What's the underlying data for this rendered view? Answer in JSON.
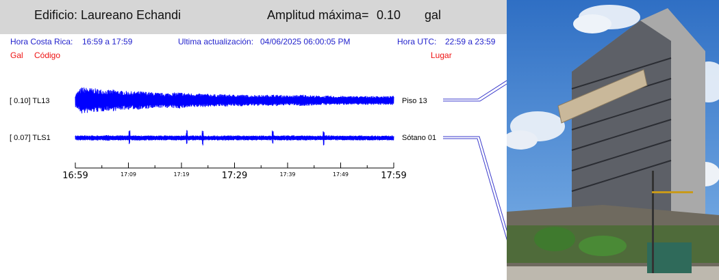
{
  "header": {
    "building_label": "Edificio: Laureano Echandi",
    "amp_label": "Amplitud máxima=",
    "amp_value": "0.10",
    "amp_unit": "gal"
  },
  "info": {
    "cr_time_label": "Hora Costa Rica:",
    "cr_time_value": "16:59 a 17:59",
    "update_label": "Ultima actualización:",
    "update_value": "04/06/2025 06:00:05 PM",
    "utc_label": "Hora UTC:",
    "utc_value": "22:59 a 23:59"
  },
  "legend": {
    "gal": "Gal",
    "code": "Código",
    "place": "Lugar"
  },
  "colors": {
    "trace": "#0000ff",
    "info_text": "#2222cc",
    "legend_text": "#ee1111",
    "header_bg": "#d6d6d6"
  },
  "chart_data": {
    "type": "line",
    "x_start": "16:59",
    "x_end": "17:59",
    "x_unit": "local time",
    "tick_labels_major": [
      "16:59",
      "17:29",
      "17:59"
    ],
    "tick_labels_minor": [
      "17:09",
      "17:19",
      "17:39",
      "17:49"
    ],
    "series": [
      {
        "name": "TL13",
        "amplitude_label": "[   0.10] TL13",
        "peak_gal": 0.1,
        "location": "Piso 13",
        "envelope": [
          0.45,
          0.9,
          0.85,
          0.8,
          0.75,
          0.7,
          0.72,
          0.65,
          0.62,
          0.6,
          0.62,
          0.58,
          0.55,
          0.5,
          0.5,
          0.52,
          0.55,
          0.5,
          0.48,
          0.45,
          0.45,
          0.42,
          0.4,
          0.42,
          0.38,
          0.4,
          0.38,
          0.35,
          0.38,
          0.35,
          0.4,
          0.38,
          0.35,
          0.32,
          0.35,
          0.4,
          0.35,
          0.33,
          0.3,
          0.32,
          0.28,
          0.3,
          0.28,
          0.3,
          0.28,
          0.3,
          0.28,
          0.3,
          0.28,
          0.3
        ]
      },
      {
        "name": "TLS1",
        "amplitude_label": "[   0.07] TLS1",
        "peak_gal": 0.07,
        "location": "Sótano 01",
        "envelope": [
          0.3,
          0.35,
          0.3,
          0.32,
          0.3,
          0.35,
          0.3,
          0.32,
          0.3,
          0.3,
          0.32,
          0.3,
          0.3,
          0.3,
          0.32,
          0.3,
          0.3,
          0.3,
          0.32,
          0.3,
          0.3,
          0.3,
          0.3,
          0.32,
          0.3,
          0.3,
          0.3,
          0.32,
          0.3,
          0.3,
          0.3,
          0.3,
          0.3,
          0.32,
          0.3,
          0.3,
          0.3,
          0.3,
          0.3,
          0.32,
          0.3,
          0.3,
          0.3,
          0.3,
          0.3,
          0.3,
          0.3,
          0.3,
          0.3,
          0.3
        ],
        "spikes": [
          0.17,
          0.35,
          0.4,
          0.62,
          0.78
        ]
      }
    ]
  },
  "photo": {
    "subject": "building-photo"
  }
}
